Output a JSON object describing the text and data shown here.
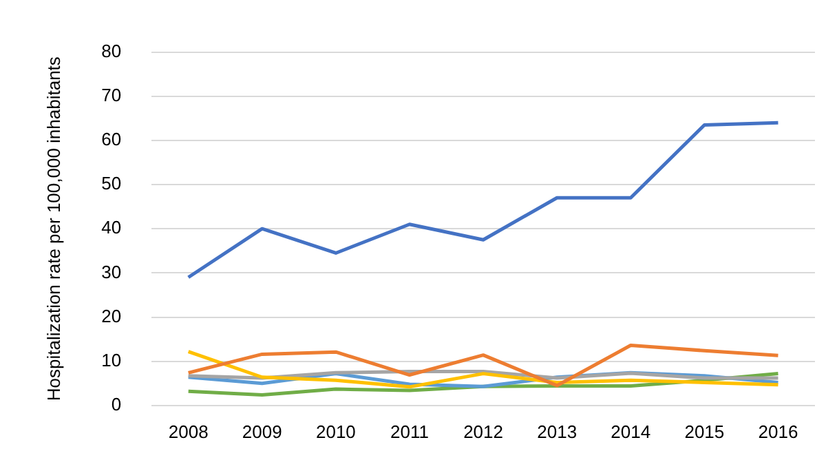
{
  "chart_data": {
    "type": "line",
    "ylabel": "Hospitalization rate per 100,000 inhabitants",
    "categories": [
      "2008",
      "2009",
      "2010",
      "2011",
      "2012",
      "2013",
      "2014",
      "2015",
      "2016"
    ],
    "series": [
      {
        "color": "#4472c4",
        "values": [
          29,
          40,
          34.5,
          41,
          37.5,
          47,
          47,
          63.5,
          64
        ]
      },
      {
        "color": "#ed7d31",
        "values": [
          7.4,
          11.6,
          12.1,
          6.9,
          11.4,
          4.5,
          13.6,
          12.4,
          11.3
        ]
      },
      {
        "color": "#ffc000",
        "values": [
          12.2,
          6.4,
          5.7,
          4.2,
          7.2,
          5.2,
          5.7,
          5.2,
          4.7
        ]
      },
      {
        "color": "#a5a5a5",
        "values": [
          6.7,
          6.2,
          7.4,
          7.7,
          7.7,
          6.2,
          7.3,
          6.2,
          6.2
        ]
      },
      {
        "color": "#5b9bd5",
        "values": [
          6.4,
          5,
          7.2,
          4.8,
          4.3,
          6.4,
          7.4,
          6.7,
          5.2
        ]
      },
      {
        "color": "#70ad47",
        "values": [
          3.2,
          2.4,
          3.7,
          3.4,
          4.3,
          4.4,
          4.4,
          5.7,
          7.2
        ]
      }
    ],
    "ylim": [
      0,
      80
    ],
    "yticks": [
      0,
      10,
      20,
      30,
      40,
      50,
      60,
      70,
      80
    ],
    "grid": "y",
    "legend": false,
    "marker": "none",
    "line_style": "solid"
  }
}
